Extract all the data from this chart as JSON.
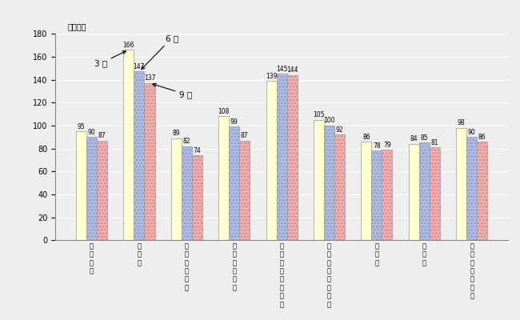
{
  "categories": [
    "小売業計",
    "百貨店",
    "総合スーパー",
    "専門スーパー",
    "コンビニ・ストア",
    "その他のスーパー",
    "専門店",
    "中心店",
    "その他の小売店"
  ],
  "series_3": [
    95,
    166,
    89,
    108,
    139,
    105,
    86,
    84,
    98
  ],
  "series_6": [
    90,
    147,
    82,
    99,
    145,
    100,
    78,
    85,
    90
  ],
  "series_9": [
    87,
    137,
    74,
    87,
    144,
    92,
    79,
    81,
    86
  ],
  "bar_color_3": "#FFFFD0",
  "bar_color_6": "#AABBEE",
  "bar_color_9": "#FFAAAA",
  "bar_edgecolor": "#999999",
  "bg_color": "#EEEEEE",
  "ylabel": "（万円）",
  "ylim": [
    0,
    180
  ],
  "yticks": [
    0,
    20,
    40,
    60,
    80,
    100,
    120,
    140,
    160,
    180
  ],
  "legend_3": "3 年",
  "legend_6": "6 年",
  "legend_9": "9 年",
  "bar_width": 0.22,
  "value_fontsize": 5.5,
  "tick_fontsize": 6.0
}
